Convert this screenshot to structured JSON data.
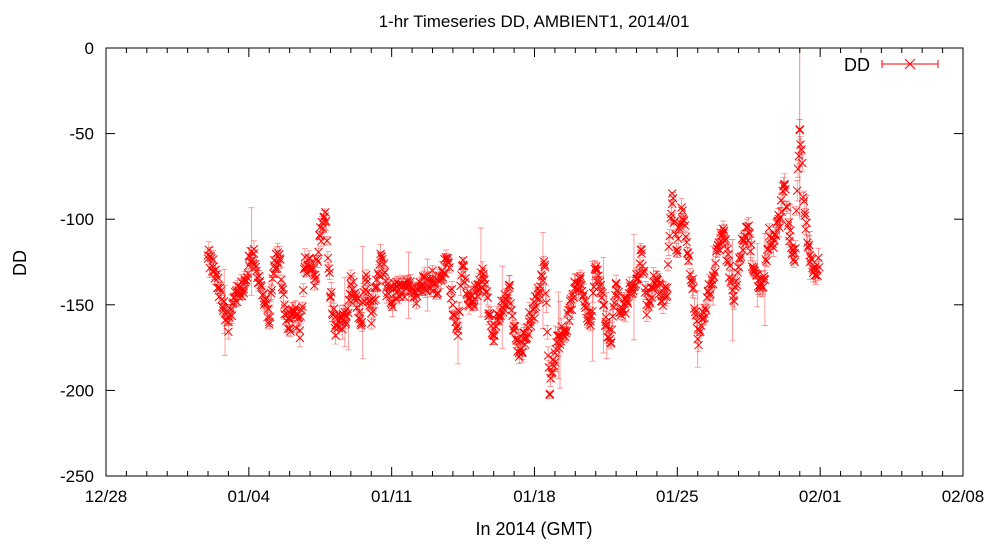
{
  "chart_data": {
    "type": "scatter",
    "title": "1-hr Timeseries DD, AMBIENT1, 2014/01",
    "xlabel": "In 2014 (GMT)",
    "ylabel": "DD",
    "xlim": [
      "2013-12-28",
      "2014-02-08"
    ],
    "ylim": [
      -250,
      0
    ],
    "x_ticks": [
      "12/28",
      "01/04",
      "01/11",
      "01/18",
      "01/25",
      "02/01",
      "02/08"
    ],
    "y_ticks": [
      "0",
      "-50",
      "-100",
      "-150",
      "-200",
      "-250"
    ],
    "x_minor_tick_days": 1,
    "grid": false,
    "legend": {
      "position": "top-right",
      "entries": [
        "DD"
      ]
    },
    "marker": "x",
    "error_bars": true,
    "series": [
      {
        "name": "DD",
        "color": "#ff0000",
        "x_start": "2014-01-02 00:00",
        "x_end": "2014-01-31 23:00",
        "x_step_hours": 1,
        "points": [
          [
            "2014-01-02 00:00",
            -123
          ],
          [
            "2014-01-02 06:00",
            -128
          ],
          [
            "2014-01-02 12:00",
            -140
          ],
          [
            "2014-01-02 18:00",
            -152
          ],
          [
            "2014-01-03 00:00",
            -160
          ],
          [
            "2014-01-03 06:00",
            -146
          ],
          [
            "2014-01-03 12:00",
            -142
          ],
          [
            "2014-01-03 18:00",
            -143
          ],
          [
            "2014-01-04 00:00",
            -127
          ],
          [
            "2014-01-04 06:00",
            -120
          ],
          [
            "2014-01-04 12:00",
            -137
          ],
          [
            "2014-01-04 18:00",
            -148
          ],
          [
            "2014-01-05 00:00",
            -160
          ],
          [
            "2014-01-05 06:00",
            -127
          ],
          [
            "2014-01-05 12:00",
            -123
          ],
          [
            "2014-01-05 18:00",
            -150
          ],
          [
            "2014-01-06 00:00",
            -164
          ],
          [
            "2014-01-06 06:00",
            -154
          ],
          [
            "2014-01-06 12:00",
            -165
          ],
          [
            "2014-01-06 18:00",
            -128
          ],
          [
            "2014-01-07 00:00",
            -123
          ],
          [
            "2014-01-07 06:00",
            -135
          ],
          [
            "2014-01-07 12:00",
            -110
          ],
          [
            "2014-01-07 18:00",
            -96
          ],
          [
            "2014-01-08 00:00",
            -145
          ],
          [
            "2014-01-08 06:00",
            -162
          ],
          [
            "2014-01-08 12:00",
            -158
          ],
          [
            "2014-01-08 18:00",
            -160
          ],
          [
            "2014-01-09 00:00",
            -138
          ],
          [
            "2014-01-09 06:00",
            -145
          ],
          [
            "2014-01-09 12:00",
            -162
          ],
          [
            "2014-01-09 18:00",
            -135
          ],
          [
            "2014-01-10 00:00",
            -155
          ],
          [
            "2014-01-10 06:00",
            -140
          ],
          [
            "2014-01-10 12:00",
            -122
          ],
          [
            "2014-01-10 18:00",
            -140
          ],
          [
            "2014-01-11 00:00",
            -148
          ],
          [
            "2014-01-11 06:00",
            -140
          ],
          [
            "2014-01-11 12:00",
            -143
          ],
          [
            "2014-01-11 18:00",
            -136
          ],
          [
            "2014-01-12 00:00",
            -140
          ],
          [
            "2014-01-12 06:00",
            -145
          ],
          [
            "2014-01-12 12:00",
            -138
          ],
          [
            "2014-01-12 18:00",
            -135
          ],
          [
            "2014-01-13 00:00",
            -135
          ],
          [
            "2014-01-13 06:00",
            -143
          ],
          [
            "2014-01-13 12:00",
            -130
          ],
          [
            "2014-01-13 18:00",
            -125
          ],
          [
            "2014-01-14 00:00",
            -150
          ],
          [
            "2014-01-14 06:00",
            -165
          ],
          [
            "2014-01-14 12:00",
            -124
          ],
          [
            "2014-01-14 18:00",
            -150
          ],
          [
            "2014-01-15 00:00",
            -148
          ],
          [
            "2014-01-15 06:00",
            -138
          ],
          [
            "2014-01-15 12:00",
            -132
          ],
          [
            "2014-01-15 18:00",
            -155
          ],
          [
            "2014-01-16 00:00",
            -168
          ],
          [
            "2014-01-16 06:00",
            -156
          ],
          [
            "2014-01-16 12:00",
            -148
          ],
          [
            "2014-01-16 18:00",
            -140
          ],
          [
            "2014-01-17 00:00",
            -165
          ],
          [
            "2014-01-17 06:00",
            -178
          ],
          [
            "2014-01-17 12:00",
            -170
          ],
          [
            "2014-01-17 18:00",
            -160
          ],
          [
            "2014-01-18 00:00",
            -152
          ],
          [
            "2014-01-18 06:00",
            -142
          ],
          [
            "2014-01-18 12:00",
            -128
          ],
          [
            "2014-01-18 18:00",
            -202
          ],
          [
            "2014-01-19 00:00",
            -178
          ],
          [
            "2014-01-19 06:00",
            -168
          ],
          [
            "2014-01-19 12:00",
            -165
          ],
          [
            "2014-01-19 18:00",
            -153
          ],
          [
            "2014-01-20 00:00",
            -140
          ],
          [
            "2014-01-20 06:00",
            -135
          ],
          [
            "2014-01-20 12:00",
            -148
          ],
          [
            "2014-01-20 18:00",
            -162
          ],
          [
            "2014-01-21 00:00",
            -128
          ],
          [
            "2014-01-21 06:00",
            -142
          ],
          [
            "2014-01-21 12:00",
            -160
          ],
          [
            "2014-01-21 18:00",
            -172
          ],
          [
            "2014-01-22 00:00",
            -138
          ],
          [
            "2014-01-22 06:00",
            -154
          ],
          [
            "2014-01-22 12:00",
            -148
          ],
          [
            "2014-01-22 18:00",
            -140
          ],
          [
            "2014-01-23 00:00",
            -135
          ],
          [
            "2014-01-23 06:00",
            -120
          ],
          [
            "2014-01-23 12:00",
            -150
          ],
          [
            "2014-01-23 18:00",
            -140
          ],
          [
            "2014-01-24 00:00",
            -135
          ],
          [
            "2014-01-24 06:00",
            -148
          ],
          [
            "2014-01-24 12:00",
            -140
          ],
          [
            "2014-01-24 18:00",
            -85
          ],
          [
            "2014-01-25 00:00",
            -118
          ],
          [
            "2014-01-25 06:00",
            -95
          ],
          [
            "2014-01-25 12:00",
            -120
          ],
          [
            "2014-01-25 18:00",
            -135
          ],
          [
            "2014-01-26 00:00",
            -170
          ],
          [
            "2014-01-26 06:00",
            -158
          ],
          [
            "2014-01-26 12:00",
            -142
          ],
          [
            "2014-01-26 18:00",
            -138
          ],
          [
            "2014-01-27 00:00",
            -115
          ],
          [
            "2014-01-27 06:00",
            -108
          ],
          [
            "2014-01-27 12:00",
            -125
          ],
          [
            "2014-01-27 18:00",
            -145
          ],
          [
            "2014-01-28 00:00",
            -128
          ],
          [
            "2014-01-28 06:00",
            -112
          ],
          [
            "2014-01-28 12:00",
            -108
          ],
          [
            "2014-01-28 18:00",
            -130
          ],
          [
            "2014-01-29 00:00",
            -140
          ],
          [
            "2014-01-29 06:00",
            -135
          ],
          [
            "2014-01-29 12:00",
            -110
          ],
          [
            "2014-01-29 18:00",
            -112
          ],
          [
            "2014-01-30 00:00",
            -100
          ],
          [
            "2014-01-30 06:00",
            -80
          ],
          [
            "2014-01-30 12:00",
            -110
          ],
          [
            "2014-01-30 18:00",
            -125
          ],
          [
            "2014-01-31 00:00",
            -48
          ],
          [
            "2014-01-31 06:00",
            -98
          ],
          [
            "2014-01-31 12:00",
            -125
          ],
          [
            "2014-01-31 18:00",
            -128
          ]
        ]
      }
    ]
  }
}
